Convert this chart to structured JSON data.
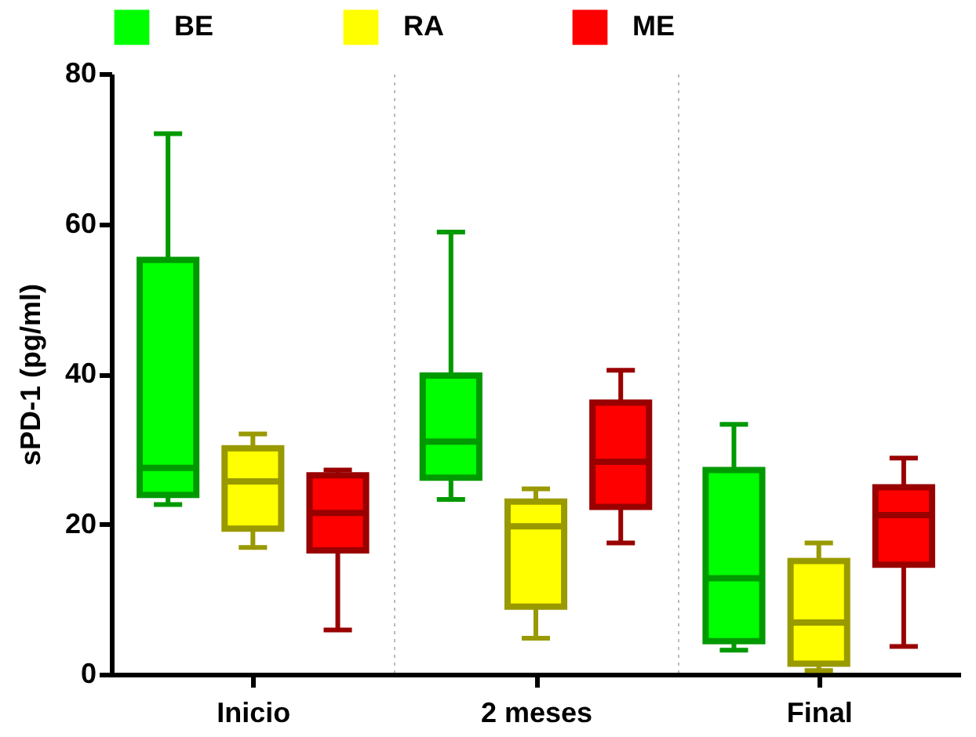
{
  "chart_data": {
    "type": "box",
    "ylabel": "sPD-1 (pg/ml)",
    "categories": [
      "Inicio",
      "2 meses",
      "Final"
    ],
    "ylim": [
      0,
      80
    ],
    "yticks": [
      0,
      20,
      40,
      60,
      80
    ],
    "grid": "x",
    "legend": "top",
    "series": [
      {
        "name": "BE",
        "color": "#00ff00",
        "boxes": [
          {
            "low": 22.6,
            "q1": 23.9,
            "median": 27.5,
            "q3": 55.2,
            "high": 72.0
          },
          {
            "low": 23.3,
            "q1": 26.2,
            "median": 31.0,
            "q3": 39.8,
            "high": 58.9
          },
          {
            "low": 3.2,
            "q1": 4.4,
            "median": 12.8,
            "q3": 27.2,
            "high": 33.3
          }
        ]
      },
      {
        "name": "RA",
        "color": "#ffff00",
        "boxes": [
          {
            "low": 16.9,
            "q1": 19.4,
            "median": 25.7,
            "q3": 30.1,
            "high": 32.0
          },
          {
            "low": 4.8,
            "q1": 9.0,
            "median": 19.7,
            "q3": 23.0,
            "high": 24.7
          },
          {
            "low": 0.5,
            "q1": 1.4,
            "median": 6.9,
            "q3": 15.1,
            "high": 17.5
          }
        ]
      },
      {
        "name": "ME",
        "color": "#ff0000",
        "boxes": [
          {
            "low": 5.9,
            "q1": 16.5,
            "median": 21.5,
            "q3": 26.5,
            "high": 27.2
          },
          {
            "low": 17.5,
            "q1": 22.3,
            "median": 28.3,
            "q3": 36.2,
            "high": 40.5
          },
          {
            "low": 3.7,
            "q1": 14.6,
            "median": 21.2,
            "q3": 24.9,
            "high": 28.8
          }
        ]
      }
    ]
  }
}
